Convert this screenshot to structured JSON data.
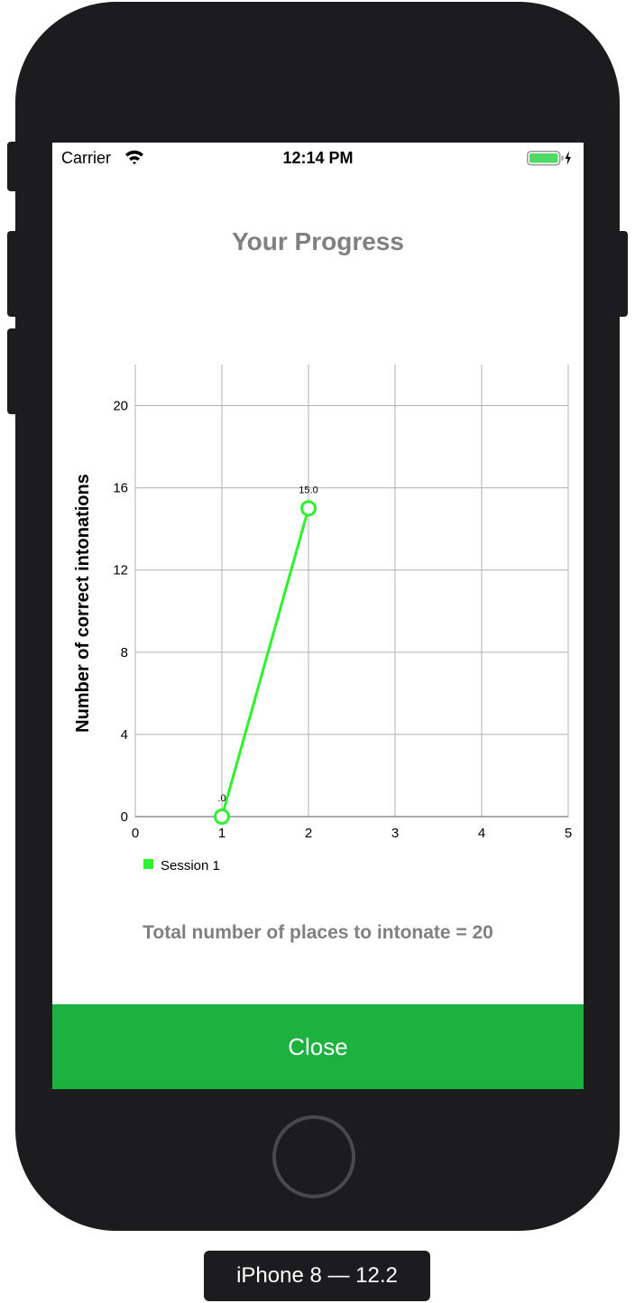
{
  "status_bar": {
    "carrier": "Carrier",
    "time": "12:14 PM",
    "wifi_icon": "wifi-icon",
    "battery_icon": "battery-charging-icon",
    "battery_color": "#4cd964"
  },
  "title": "Your Progress",
  "chart_data": {
    "type": "line",
    "title": "",
    "xlabel": "",
    "ylabel": "Number of correct intonations",
    "x_ticks": [
      "0",
      "1",
      "2",
      "3",
      "4",
      "5"
    ],
    "y_ticks": [
      "0",
      "4",
      "8",
      "12",
      "16",
      "20"
    ],
    "xlim": [
      0,
      5
    ],
    "ylim": [
      0,
      22
    ],
    "grid": true,
    "legend_position": "bottom-left",
    "series": [
      {
        "name": "Session 1",
        "color": "#2ef22e",
        "points": [
          {
            "x": 1,
            "y": 0,
            "label": ".0"
          },
          {
            "x": 2,
            "y": 15,
            "label": "15.0"
          }
        ]
      }
    ]
  },
  "total_text": "Total number of places to intonate = 20",
  "close_label": "Close",
  "accent_color": "#1db13f",
  "device_label": "iPhone 8 — 12.2"
}
